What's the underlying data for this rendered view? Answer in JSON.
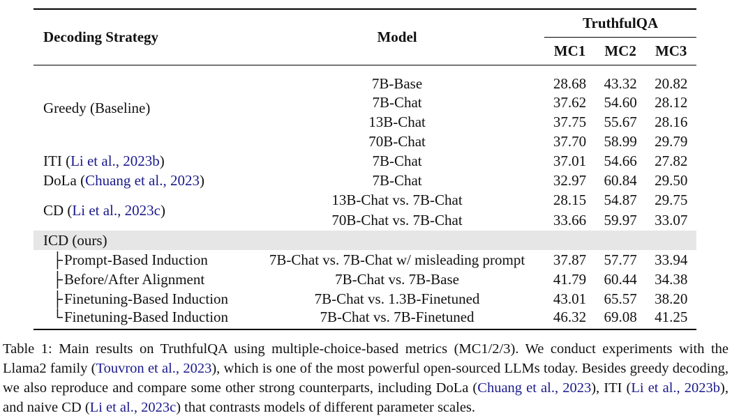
{
  "table": {
    "col_strategy": "Decoding Strategy",
    "col_model": "Model",
    "group_header": "TruthfulQA",
    "metrics": [
      "MC1",
      "MC2",
      "MC3"
    ],
    "greedy": {
      "label": "Greedy (Baseline)",
      "rows": [
        {
          "model": "7B-Base",
          "mc1": "28.68",
          "mc2": "43.32",
          "mc3": "20.82"
        },
        {
          "model": "7B-Chat",
          "mc1": "37.62",
          "mc2": "54.60",
          "mc3": "28.12"
        },
        {
          "model": "13B-Chat",
          "mc1": "37.75",
          "mc2": "55.67",
          "mc3": "28.16"
        },
        {
          "model": "70B-Chat",
          "mc1": "37.70",
          "mc2": "58.99",
          "mc3": "29.79"
        }
      ]
    },
    "iti": {
      "label_pre": "ITI (",
      "cite": "Li et al., 2023b",
      "label_post": ")",
      "model": "7B-Chat",
      "mc1": "37.01",
      "mc2": "54.66",
      "mc3": "27.82"
    },
    "dola": {
      "label_pre": "DoLa (",
      "cite": "Chuang et al., 2023",
      "label_post": ")",
      "model": "7B-Chat",
      "mc1": "32.97",
      "mc2": "60.84",
      "mc3": "29.50"
    },
    "cd": {
      "label_pre": "CD (",
      "cite": "Li et al., 2023c",
      "label_post": ")",
      "rows": [
        {
          "model": "13B-Chat vs. 7B-Chat",
          "mc1": "28.15",
          "mc2": "54.87",
          "mc3": "29.75"
        },
        {
          "model": "70B-Chat vs. 7B-Chat",
          "mc1": "33.66",
          "mc2": "59.97",
          "mc3": "33.07"
        }
      ]
    },
    "icd": {
      "label": "ICD (ours)",
      "rows": [
        {
          "branch": "├",
          "strategy": "Prompt-Based Induction",
          "model": "7B-Chat vs. 7B-Chat w/ misleading prompt",
          "mc1": "37.87",
          "mc2": "57.77",
          "mc3": "33.94"
        },
        {
          "branch": "├",
          "strategy": "Before/After Alignment",
          "model": "7B-Chat vs. 7B-Base",
          "mc1": "41.79",
          "mc2": "60.44",
          "mc3": "34.38"
        },
        {
          "branch": "├",
          "strategy": "Finetuning-Based Induction",
          "model": "7B-Chat vs. 1.3B-Finetuned",
          "mc1": "43.01",
          "mc2": "65.57",
          "mc3": "38.20"
        },
        {
          "branch": "└",
          "strategy": "Finetuning-Based Induction",
          "model": "7B-Chat vs. 7B-Finetuned",
          "mc1": "46.32",
          "mc2": "69.08",
          "mc3": "41.25"
        }
      ]
    }
  },
  "caption": {
    "t1": "Table 1: Main results on TruthfulQA using multiple-choice-based metrics (MC1/2/3). We conduct experiments with the Llama2 family (",
    "c1": "Touvron et al., 2023",
    "t2": "), which is one of the most powerful open-sourced LLMs today. Besides greedy decoding, we also reproduce and compare some other strong counterparts, including DoLa (",
    "c2": "Chuang et al., 2023",
    "t3": "), ITI (",
    "c3": "Li et al., 2023b",
    "t4": "), and naive CD (",
    "c4": "Li et al., 2023c",
    "t5": ") that contrasts models of different parameter scales."
  }
}
